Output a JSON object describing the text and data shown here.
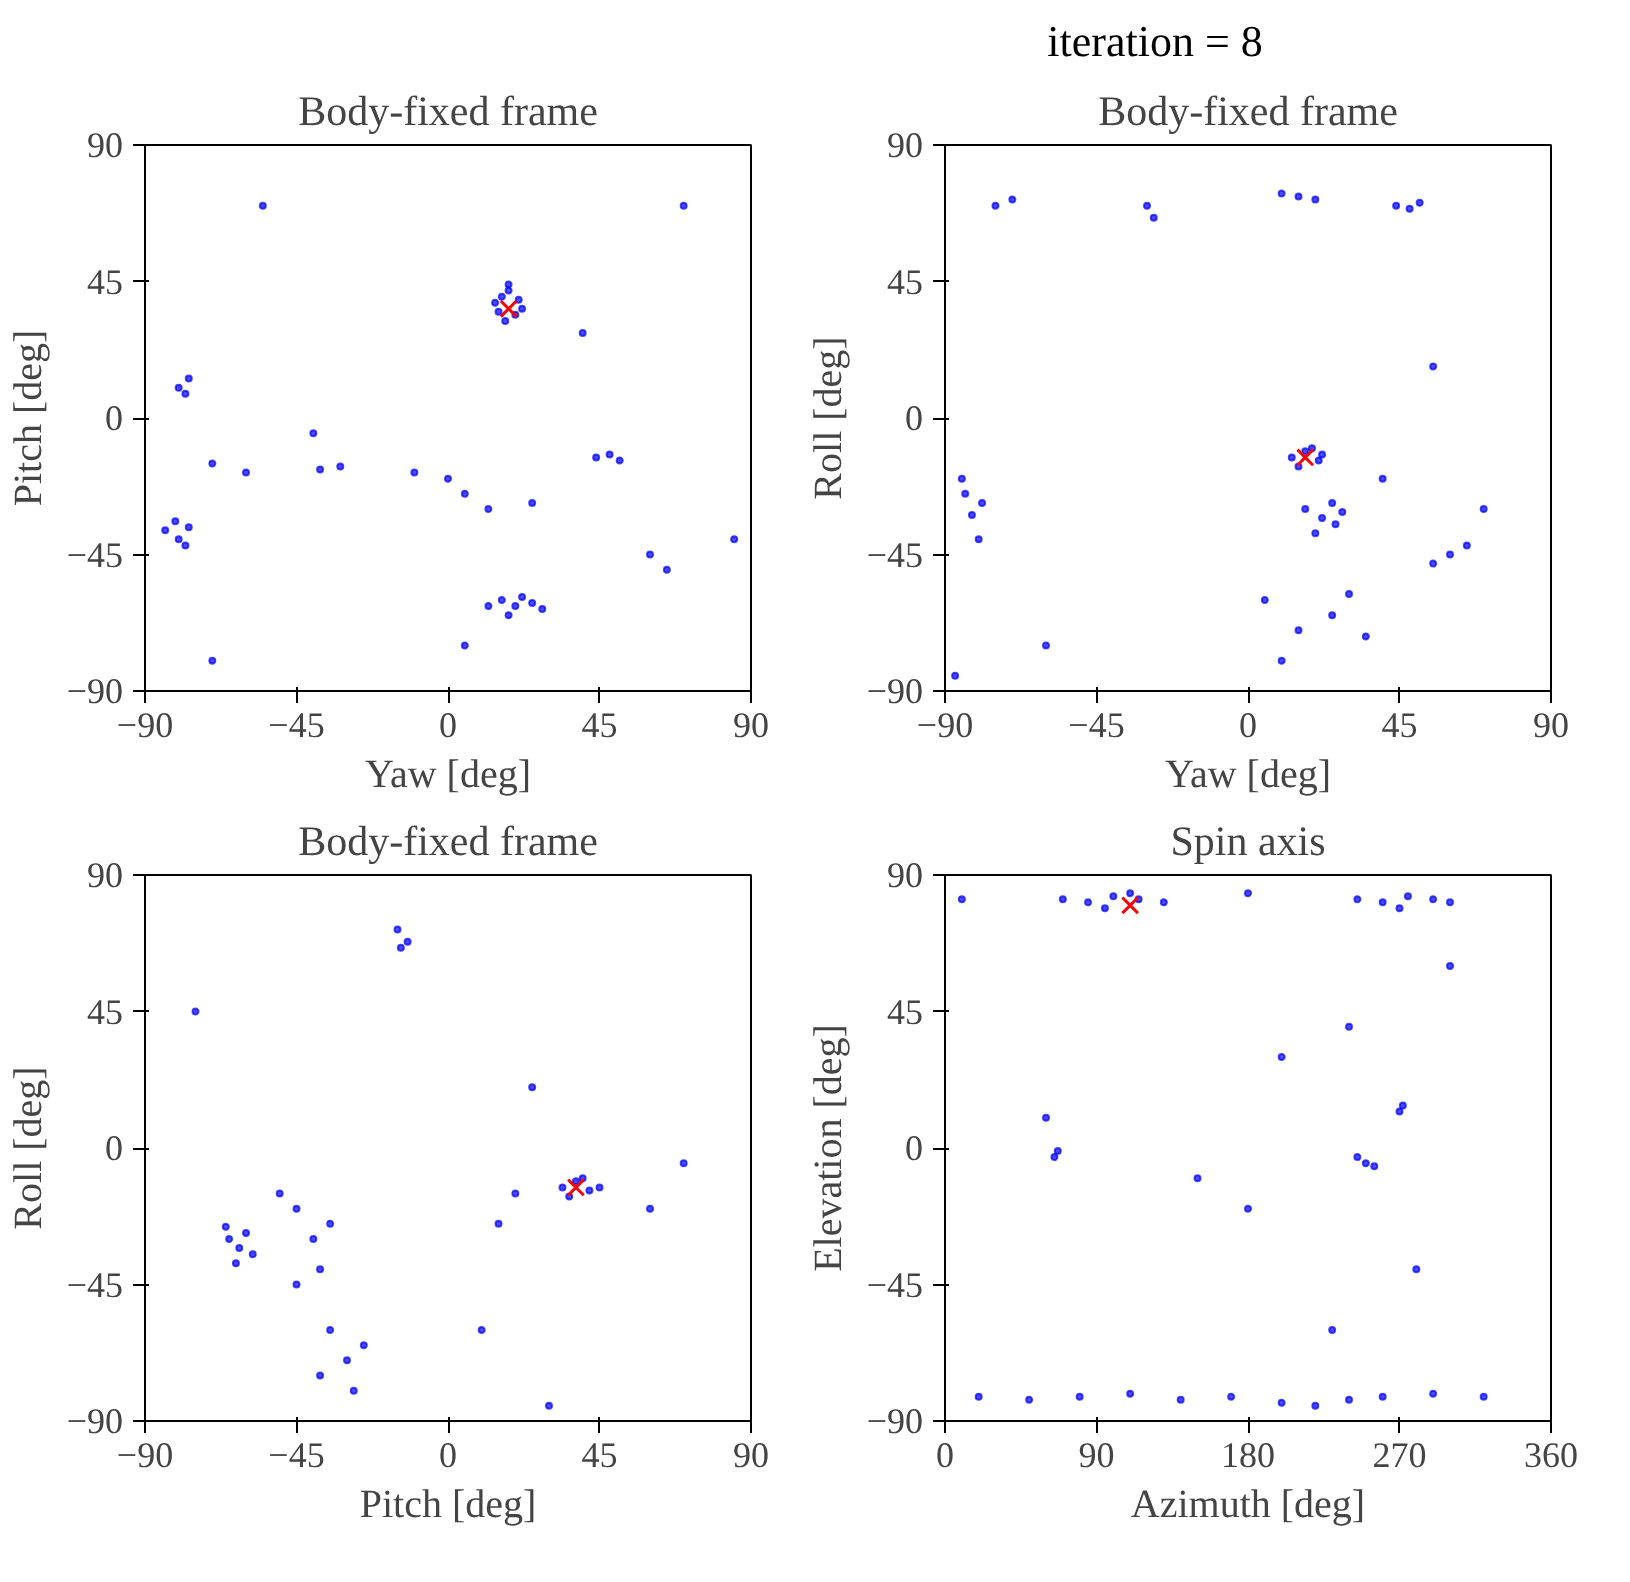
{
  "chart_data": [
    {
      "type": "other",
      "title": "iteration = 8"
    },
    {
      "type": "scatter",
      "title": "Body-fixed frame",
      "xlabel": "Yaw [deg]",
      "ylabel": "Pitch [deg]",
      "xlim": [
        -90,
        90
      ],
      "ylim": [
        -90,
        90
      ],
      "xticks": [
        -90,
        -45,
        0,
        45,
        90
      ],
      "yticks": [
        -90,
        -45,
        0,
        45,
        90
      ],
      "grid": false,
      "series": [
        {
          "color": "#0000ff",
          "marker": "circle",
          "x": [
            15,
            18,
            21,
            16,
            20,
            14,
            22,
            18,
            17,
            12,
            16,
            20,
            25,
            28,
            18,
            22,
            -84,
            -80,
            -77,
            -81,
            -78,
            -80,
            -77,
            -78,
            44,
            48,
            51,
            -38,
            -32,
            5,
            12,
            25,
            0,
            -10,
            -60,
            -70,
            60,
            65,
            -70,
            70,
            -55,
            40,
            -40,
            85,
            5
          ],
          "values": [
            35,
            44,
            39,
            40,
            34,
            38,
            36,
            42,
            32,
            -62,
            -60,
            -62,
            -61,
            -63,
            -65,
            -59,
            -37,
            -40,
            -36,
            -34,
            -42,
            10,
            13,
            8,
            -13,
            -12,
            -14,
            -17,
            -16,
            -25,
            -30,
            -28,
            -20,
            -18,
            -18,
            -15,
            -45,
            -50,
            -80,
            70,
            70,
            28,
            -5,
            -40,
            -75
          ]
        },
        {
          "color": "#ff0000",
          "marker": "cross",
          "x": [
            18
          ],
          "values": [
            36
          ]
        }
      ]
    },
    {
      "type": "scatter",
      "title": "Body-fixed frame",
      "xlabel": "Yaw [deg]",
      "ylabel": "Roll [deg]",
      "xlim": [
        -90,
        90
      ],
      "ylim": [
        -90,
        90
      ],
      "xticks": [
        -90,
        -45,
        0,
        45,
        90
      ],
      "yticks": [
        -90,
        -45,
        0,
        45,
        90
      ],
      "grid": false,
      "series": [
        {
          "color": "#0000ff",
          "marker": "circle",
          "x": [
            13,
            17,
            21,
            15,
            19,
            22,
            17,
            22,
            26,
            20,
            25,
            28,
            -84,
            -82,
            -80,
            -85,
            -79,
            44,
            48,
            51,
            -30,
            -28,
            15,
            10,
            20,
            -70,
            -75,
            5,
            15,
            25,
            35,
            10,
            30,
            60,
            55,
            65,
            55,
            -87,
            -60,
            40,
            70
          ],
          "values": [
            -13,
            -11,
            -14,
            -16,
            -10,
            -12,
            -30,
            -33,
            -35,
            -38,
            -28,
            -31,
            -25,
            -32,
            -40,
            -20,
            -28,
            70,
            69,
            71,
            70,
            66,
            73,
            74,
            72,
            72,
            70,
            -60,
            -70,
            -65,
            -72,
            -80,
            -58,
            -45,
            -48,
            -42,
            17,
            -85,
            -75,
            -20,
            -30
          ]
        },
        {
          "color": "#ff0000",
          "marker": "cross",
          "x": [
            17
          ],
          "values": [
            -13
          ]
        }
      ]
    },
    {
      "type": "scatter",
      "title": "Body-fixed frame",
      "xlabel": "Pitch [deg]",
      "ylabel": "Roll [deg]",
      "xlim": [
        -90,
        90
      ],
      "ylim": [
        -90,
        90
      ],
      "xticks": [
        -90,
        -45,
        0,
        45,
        90
      ],
      "yticks": [
        -90,
        -45,
        0,
        45,
        90
      ],
      "grid": false,
      "series": [
        {
          "color": "#0000ff",
          "marker": "circle",
          "x": [
            -65,
            -62,
            -60,
            -63,
            -58,
            -66,
            -15,
            -12,
            -14,
            34,
            38,
            42,
            36,
            40,
            45,
            -45,
            -40,
            -38,
            -45,
            -35,
            -35,
            -30,
            -28,
            -38,
            -25,
            20,
            15,
            60,
            70,
            -75,
            -50,
            25,
            10,
            30
          ],
          "values": [
            -30,
            -33,
            -28,
            -38,
            -35,
            -26,
            72,
            68,
            66,
            -13,
            -11,
            -14,
            -16,
            -10,
            -13,
            -20,
            -30,
            -40,
            -45,
            -25,
            -60,
            -70,
            -80,
            -75,
            -65,
            -15,
            -25,
            -20,
            -5,
            45,
            -15,
            20,
            -60,
            -85
          ]
        },
        {
          "color": "#ff0000",
          "marker": "cross",
          "x": [
            38
          ],
          "values": [
            -13
          ]
        }
      ]
    },
    {
      "type": "scatter",
      "title": "Spin axis",
      "xlabel": "Azimuth [deg]",
      "ylabel": "Elevation [deg]",
      "xlim": [
        0,
        360
      ],
      "ylim": [
        -90,
        90
      ],
      "xticks": [
        0,
        90,
        180,
        270,
        360
      ],
      "yticks": [
        -90,
        -45,
        0,
        45,
        90
      ],
      "grid": false,
      "series": [
        {
          "color": "#0000ff",
          "marker": "circle",
          "x": [
            70,
            85,
            100,
            115,
            130,
            95,
            110,
            245,
            260,
            275,
            290,
            300,
            270,
            65,
            67,
            270,
            272,
            250,
            245,
            255,
            20,
            50,
            80,
            110,
            140,
            170,
            200,
            220,
            240,
            260,
            290,
            320,
            150,
            180,
            200,
            230,
            280,
            10,
            180,
            60,
            300,
            240
          ],
          "values": [
            82,
            81,
            83,
            82,
            81,
            79,
            84,
            82,
            81,
            83,
            82,
            81,
            79,
            -3,
            -1,
            12,
            14,
            -5,
            -3,
            -6,
            -82,
            -83,
            -82,
            -81,
            -83,
            -82,
            -84,
            -85,
            -83,
            -82,
            -81,
            -82,
            -10,
            -20,
            30,
            -60,
            -40,
            82,
            84,
            10,
            60,
            40
          ]
        },
        {
          "color": "#ff0000",
          "marker": "cross",
          "x": [
            110
          ],
          "values": [
            80
          ]
        }
      ]
    }
  ]
}
